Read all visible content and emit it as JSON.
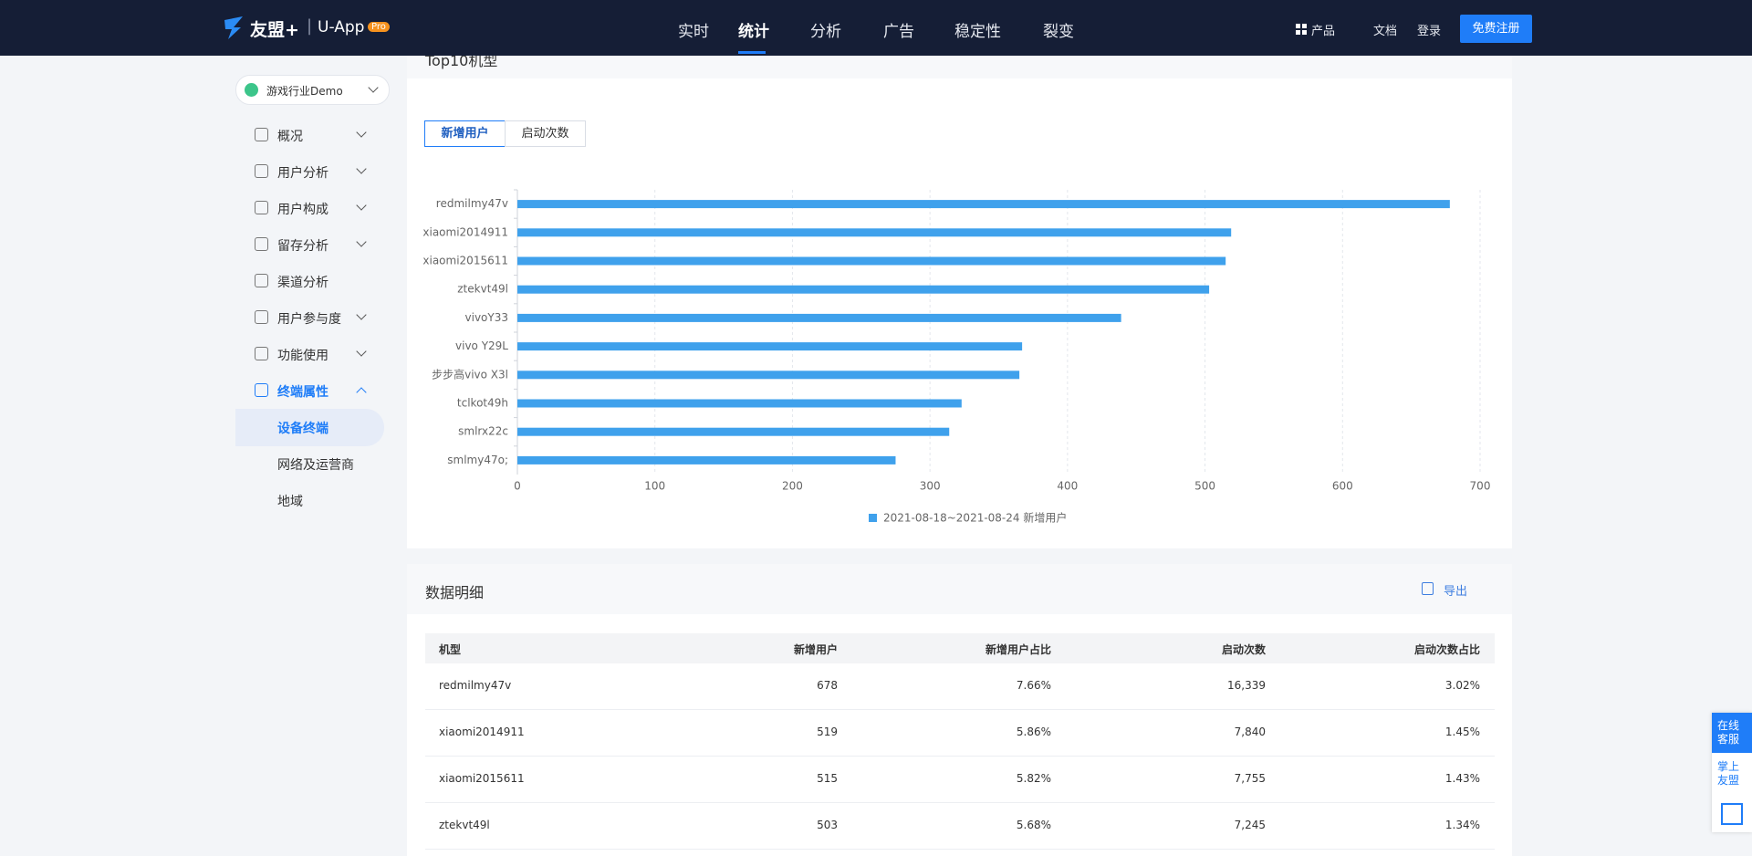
{
  "header": {
    "brand": "友盟+",
    "product": "U-App",
    "badge": "Pro",
    "nav": [
      "实时",
      "统计",
      "分析",
      "广告",
      "稳定性",
      "裂变"
    ],
    "right": [
      "产品",
      "文档",
      "登录"
    ],
    "signup": "免费注册"
  },
  "sidebar": {
    "app": "游戏行业Demo",
    "menu": [
      "概况",
      "用户分析",
      "用户构成",
      "留存分析",
      "渠道分析",
      "用户参与度",
      "功能使用",
      "终端属性"
    ],
    "submenu": [
      "设备终端",
      "网络及运营商",
      "地域"
    ]
  },
  "card_title": "Top10机型",
  "tabs": [
    "新增用户",
    "启动次数"
  ],
  "chart_data": {
    "type": "hbar",
    "categories": [
      "redmilmy47v",
      "xiaomi2014911",
      "xiaomi2015611",
      "ztekvt49l",
      "vivoY33",
      "vivo Y29L",
      "步步高vivo X3l",
      "tclkot49h",
      "smlrx22c",
      "smlmy47o;"
    ],
    "series": [
      {
        "name": "2021-08-18~2021-08-24 新增用户",
        "color": "#3fa1ec",
        "values": [
          678,
          519,
          515,
          503,
          439,
          367,
          365,
          323,
          314,
          275
        ]
      }
    ],
    "xlim": [
      0,
      700
    ],
    "xticks": [
      0,
      100,
      200,
      300,
      400,
      500,
      600,
      700
    ],
    "grid": true
  },
  "detail": {
    "title": "数据明细",
    "export": "导出",
    "columns": [
      "机型",
      "新增用户",
      "新增用户占比",
      "启动次数",
      "启动次数占比"
    ],
    "rows": [
      [
        "redmilmy47v",
        "678",
        "7.66%",
        "16,339",
        "3.02%"
      ],
      [
        "xiaomi2014911",
        "519",
        "5.86%",
        "7,840",
        "1.45%"
      ],
      [
        "xiaomi2015611",
        "515",
        "5.82%",
        "7,755",
        "1.43%"
      ],
      [
        "ztekvt49l",
        "503",
        "5.68%",
        "7,245",
        "1.34%"
      ]
    ]
  },
  "float": [
    "在线客服",
    "掌上友盟"
  ]
}
